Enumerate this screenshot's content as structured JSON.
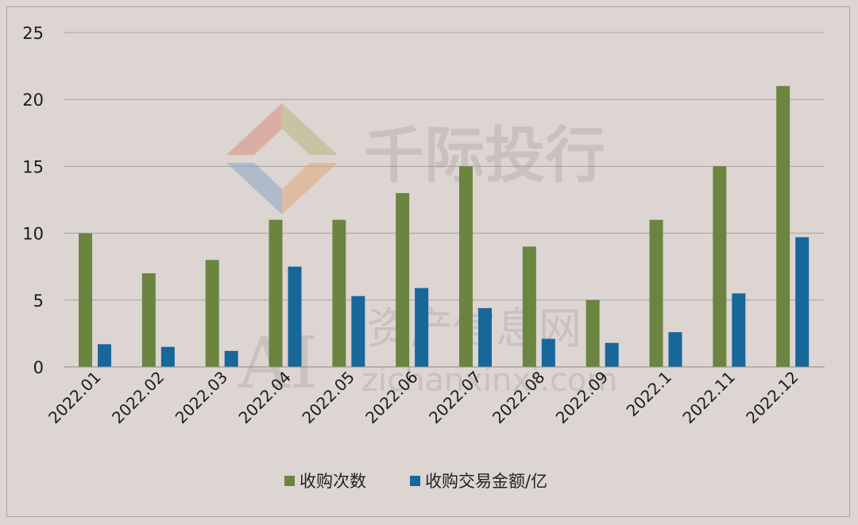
{
  "chart_data": {
    "type": "bar",
    "categories": [
      "2022.01",
      "2022.02",
      "2022.03",
      "2022.04",
      "2022.05",
      "2022.06",
      "2022.07",
      "2022.08",
      "2022.09",
      "2022.1",
      "2022.11",
      "2022.12"
    ],
    "series": [
      {
        "name": "收购次数",
        "color": "#6b843f",
        "values": [
          10,
          7,
          8,
          11,
          11,
          13,
          15,
          9,
          5,
          11,
          15,
          21
        ]
      },
      {
        "name": "收购交易金额/亿",
        "color": "#17679a",
        "values": [
          1.7,
          1.5,
          1.2,
          7.5,
          5.3,
          5.9,
          4.4,
          2.1,
          1.8,
          2.6,
          5.5,
          9.7
        ]
      }
    ],
    "y_ticks": [
      "0",
      "5",
      "10",
      "15",
      "20",
      "25"
    ],
    "ylim": [
      0,
      25
    ],
    "grid": true,
    "legend_position": "bottom"
  },
  "watermark": {
    "brand": "千际投行",
    "site_cn": "资产信息网",
    "site_ai": "AI",
    "site_url": "zichanxinxi.com"
  }
}
